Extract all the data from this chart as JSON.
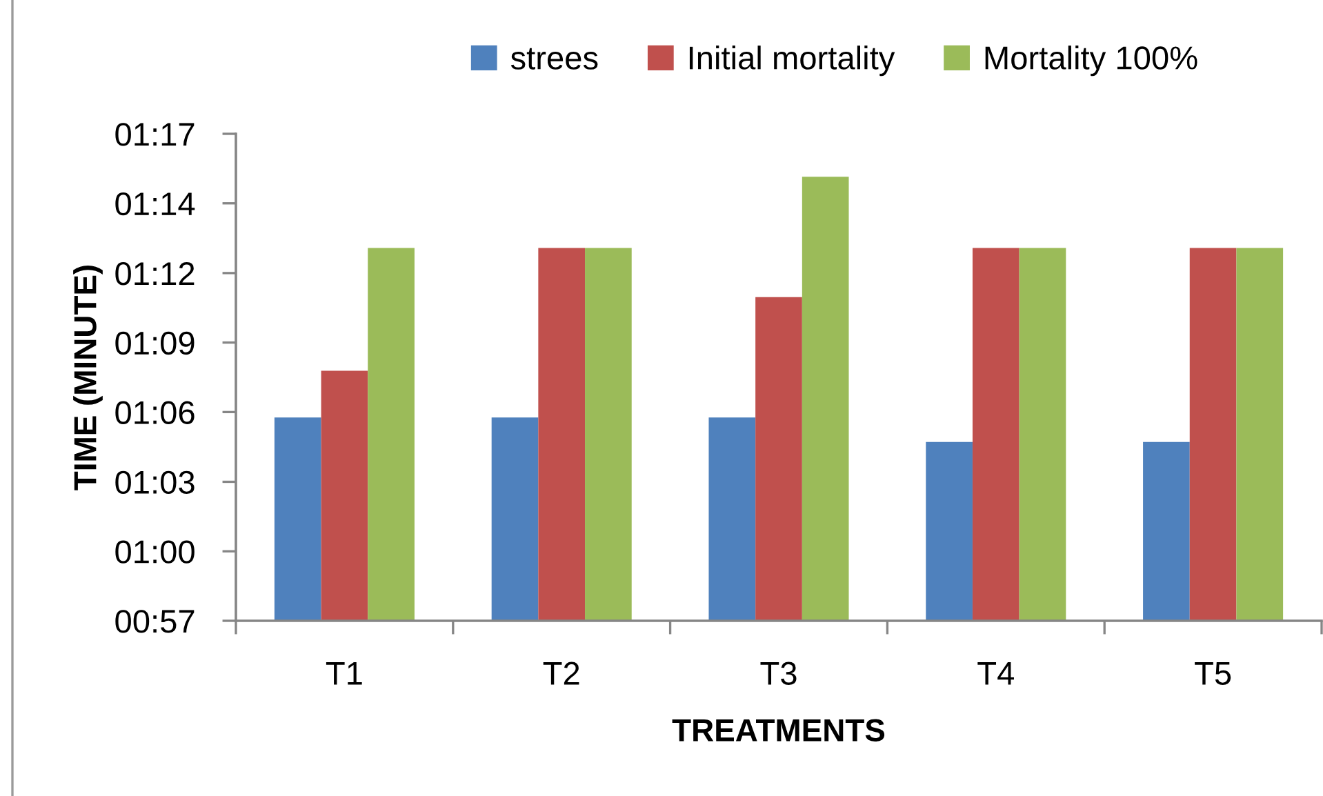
{
  "chart_data": {
    "type": "bar",
    "xlabel": "TREATMENTS",
    "ylabel": "TIME (MINUTE)",
    "categories": [
      "T1",
      "T2",
      "T3",
      "T4",
      "T5"
    ],
    "series": [
      {
        "name": "strees",
        "color": "#4f81bd",
        "values": [
          65.7,
          65.7,
          65.7,
          64.7,
          64.7
        ]
      },
      {
        "name": "Initial mortality",
        "color": "#c0504d",
        "values": [
          67.6,
          72.6,
          70.6,
          72.6,
          72.6
        ]
      },
      {
        "name": "Mortality 100%",
        "color": "#9bbb59",
        "values": [
          72.6,
          72.6,
          75.5,
          72.6,
          72.6
        ]
      }
    ],
    "ylim": [
      57.42,
      77.25
    ],
    "yticks": [
      {
        "value": 57.42,
        "label": "00:57"
      },
      {
        "value": 60.25,
        "label": "01:00"
      },
      {
        "value": 63.08,
        "label": "01:03"
      },
      {
        "value": 65.92,
        "label": "01:06"
      },
      {
        "value": 68.75,
        "label": "01:09"
      },
      {
        "value": 71.58,
        "label": "01:12"
      },
      {
        "value": 74.42,
        "label": "01:14"
      },
      {
        "value": 77.25,
        "label": "01:17"
      }
    ],
    "legend": "top"
  }
}
